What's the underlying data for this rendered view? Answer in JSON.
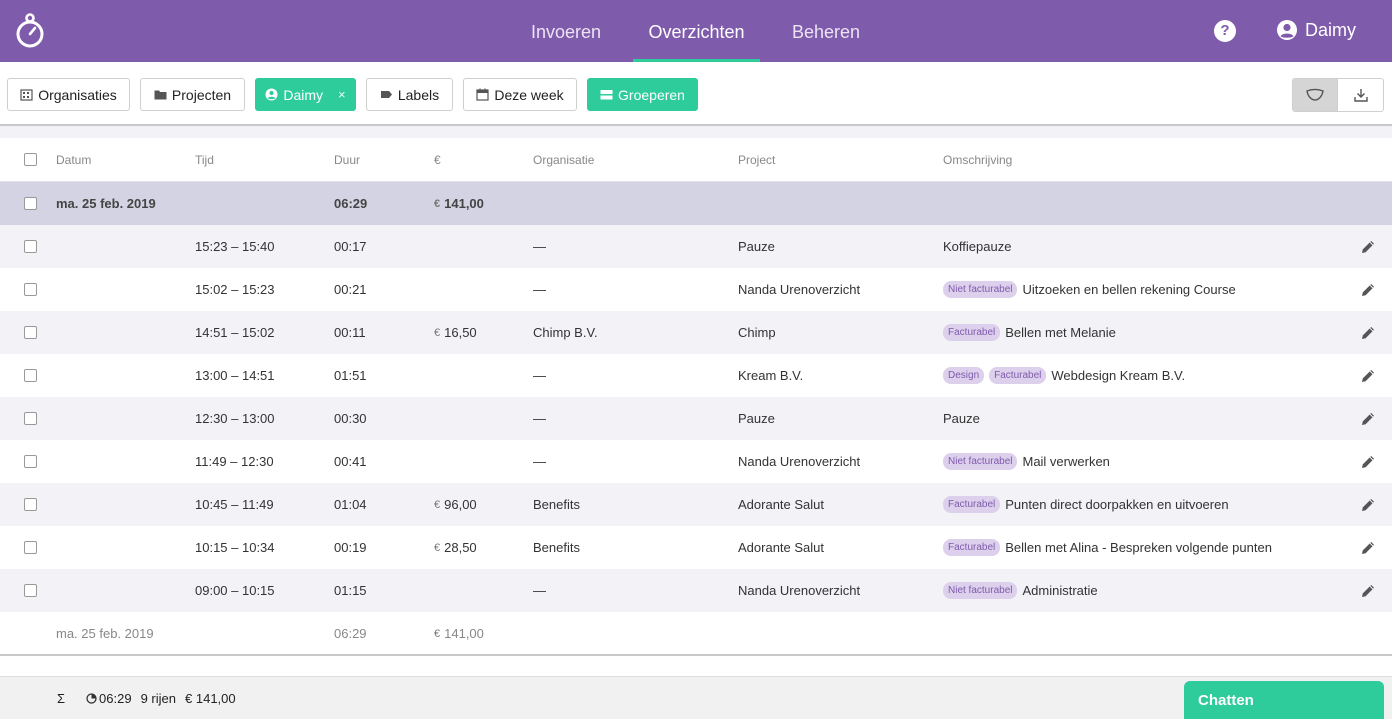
{
  "nav": {
    "tabs": [
      {
        "label": "Invoeren"
      },
      {
        "label": "Overzichten"
      },
      {
        "label": "Beheren"
      }
    ],
    "user": "Daimy",
    "colors": {
      "brand": "#7f5bab",
      "accent": "#2ecc9a"
    }
  },
  "filters": {
    "organisaties": "Organisaties",
    "projecten": "Projecten",
    "user": "Daimy",
    "labels": "Labels",
    "period": "Deze week",
    "group": "Groeperen",
    "remove": "×"
  },
  "table": {
    "headers": {
      "date": "Datum",
      "time": "Tijd",
      "duration": "Duur",
      "amount": "€",
      "org": "Organisatie",
      "project": "Project",
      "desc": "Omschrijving"
    },
    "group": {
      "date": "ma. 25 feb. 2019",
      "duration": "06:29",
      "currency": "€",
      "amount": "141,00"
    },
    "rows": [
      {
        "time": "15:23 – 15:40",
        "duration": "00:17",
        "currency": "",
        "amount": "",
        "org": "—",
        "project": "Pauze",
        "tags": [],
        "desc": "Koffiepauze"
      },
      {
        "time": "15:02 – 15:23",
        "duration": "00:21",
        "currency": "",
        "amount": "",
        "org": "—",
        "project": "Nanda Urenoverzicht",
        "tags": [
          "Niet facturabel"
        ],
        "desc": "Uitzoeken en bellen rekening Course"
      },
      {
        "time": "14:51 – 15:02",
        "duration": "00:11",
        "currency": "€",
        "amount": "16,50",
        "org": "Chimp B.V.",
        "project": "Chimp",
        "tags": [
          "Facturabel"
        ],
        "desc": "Bellen met Melanie"
      },
      {
        "time": "13:00 – 14:51",
        "duration": "01:51",
        "currency": "",
        "amount": "",
        "org": "—",
        "project": "Kream B.V.",
        "tags": [
          "Design",
          "Facturabel"
        ],
        "desc": "Webdesign Kream B.V."
      },
      {
        "time": "12:30 – 13:00",
        "duration": "00:30",
        "currency": "",
        "amount": "",
        "org": "—",
        "project": "Pauze",
        "tags": [],
        "desc": "Pauze"
      },
      {
        "time": "11:49 – 12:30",
        "duration": "00:41",
        "currency": "",
        "amount": "",
        "org": "—",
        "project": "Nanda Urenoverzicht",
        "tags": [
          "Niet facturabel"
        ],
        "desc": "Mail verwerken"
      },
      {
        "time": "10:45 – 11:49",
        "duration": "01:04",
        "currency": "€",
        "amount": "96,00",
        "org": "Benefits",
        "project": "Adorante Salut",
        "tags": [
          "Facturabel"
        ],
        "desc": "Punten direct doorpakken en uitvoeren"
      },
      {
        "time": "10:15 – 10:34",
        "duration": "00:19",
        "currency": "€",
        "amount": "28,50",
        "org": "Benefits",
        "project": "Adorante Salut",
        "tags": [
          "Facturabel"
        ],
        "desc": "Bellen met Alina - Bespreken volgende punten"
      },
      {
        "time": "09:00 – 10:15",
        "duration": "01:15",
        "currency": "",
        "amount": "",
        "org": "—",
        "project": "Nanda Urenoverzicht",
        "tags": [
          "Niet facturabel"
        ],
        "desc": "Administratie"
      }
    ],
    "footer": {
      "date": "ma. 25 feb. 2019",
      "duration": "06:29",
      "currency": "€",
      "amount": "141,00"
    }
  },
  "status": {
    "sigma": "Σ",
    "total_time": "06:29",
    "rows": "9 rijen",
    "total_amount": "€ 141,00"
  },
  "chat": "Chatten"
}
